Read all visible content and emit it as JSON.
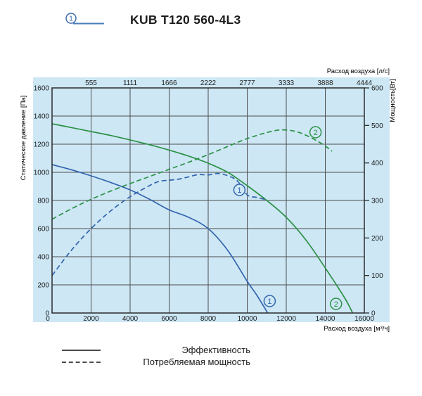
{
  "header": {
    "marker_number": "1",
    "title": "KUB T120 560-4L3"
  },
  "colors": {
    "panel_bg": "#cde7f5",
    "grid": "#4d4d4d",
    "spine": "#2b2b2b",
    "blue_curve": "#3465ad",
    "green_curve": "#2c9145",
    "legend_line": "#4a4a4a",
    "text": "#1c1c1c"
  },
  "chart_data": {
    "type": "line",
    "grid": true,
    "x_axis_bottom": {
      "label": "Расход воздуха [м³/ч]",
      "range": [
        0,
        16000
      ],
      "ticks": [
        {
          "label": "0",
          "at": 0
        },
        {
          "label": "2000",
          "at": 2000
        },
        {
          "label": "4000",
          "at": 4000
        },
        {
          "label": "6000",
          "at": 6000
        },
        {
          "label": "8000",
          "at": 8000
        },
        {
          "label": "10000",
          "at": 10000
        },
        {
          "label": "12000",
          "at": 12000
        },
        {
          "label": "14000",
          "at": 14000
        },
        {
          "label": "16000",
          "at": 16000
        }
      ]
    },
    "x_axis_top": {
      "label": "Расход воздуха [л/с]",
      "ticks": [
        {
          "label": "555",
          "at": 2000
        },
        {
          "label": "1111",
          "at": 4000
        },
        {
          "label": "1666",
          "at": 6000
        },
        {
          "label": "2222",
          "at": 8000
        },
        {
          "label": "2777",
          "at": 10000
        },
        {
          "label": "3333",
          "at": 12000
        },
        {
          "label": "3888",
          "at": 14000
        },
        {
          "label": "4444",
          "at": 16000
        }
      ]
    },
    "y_axis_left": {
      "label": "Статическое давление [Па]",
      "range": [
        0,
        1600
      ],
      "ticks": [
        {
          "label": "0",
          "at": 0
        },
        {
          "label": "200",
          "at": 200
        },
        {
          "label": "400",
          "at": 400
        },
        {
          "label": "600",
          "at": 600
        },
        {
          "label": "800",
          "at": 800
        },
        {
          "label": "1000",
          "at": 1000
        },
        {
          "label": "1200",
          "at": 1200
        },
        {
          "label": "1400",
          "at": 1400
        },
        {
          "label": "1600",
          "at": 1600
        }
      ]
    },
    "y_axis_right": {
      "label": "Мощность[Вт]",
      "range": [
        0,
        600
      ],
      "ticks": [
        {
          "label": "0",
          "at": 0
        },
        {
          "label": "100",
          "at": 100
        },
        {
          "label": "200",
          "at": 200
        },
        {
          "label": "300",
          "at": 300
        },
        {
          "label": "400",
          "at": 400
        },
        {
          "label": "500",
          "at": 500
        },
        {
          "label": "600",
          "at": 600
        }
      ]
    },
    "series": [
      {
        "name": "Эффективность — кривая 1 (статическое давление)",
        "curve_id": "1",
        "axis": "left",
        "style": "solid",
        "color": "#3465ad",
        "points": [
          [
            0,
            1055
          ],
          [
            1000,
            1018
          ],
          [
            2000,
            975
          ],
          [
            3000,
            928
          ],
          [
            4000,
            875
          ],
          [
            5000,
            808
          ],
          [
            6000,
            733
          ],
          [
            7000,
            680
          ],
          [
            8000,
            600
          ],
          [
            9000,
            445
          ],
          [
            10000,
            225
          ],
          [
            10500,
            125
          ],
          [
            11050,
            0
          ]
        ]
      },
      {
        "name": "Эффективность — кривая 2 (статическое давление)",
        "curve_id": "2",
        "axis": "left",
        "style": "solid",
        "color": "#2c9145",
        "points": [
          [
            0,
            1345
          ],
          [
            1000,
            1318
          ],
          [
            2000,
            1290
          ],
          [
            3000,
            1262
          ],
          [
            4000,
            1230
          ],
          [
            5000,
            1196
          ],
          [
            6000,
            1158
          ],
          [
            7000,
            1115
          ],
          [
            8000,
            1065
          ],
          [
            9000,
            1000
          ],
          [
            10000,
            905
          ],
          [
            11000,
            800
          ],
          [
            12000,
            680
          ],
          [
            13000,
            520
          ],
          [
            14000,
            320
          ],
          [
            15000,
            105
          ],
          [
            15400,
            0
          ]
        ]
      },
      {
        "name": "Потребляемая мощность — кривая 1",
        "curve_id": "1",
        "axis": "right",
        "style": "dashed",
        "color": "#3465ad",
        "points": [
          [
            0,
            100
          ],
          [
            1000,
            168
          ],
          [
            2000,
            225
          ],
          [
            3000,
            272
          ],
          [
            4000,
            310
          ],
          [
            5000,
            340
          ],
          [
            5500,
            351
          ],
          [
            6000,
            354
          ],
          [
            6500,
            357
          ],
          [
            7000,
            363
          ],
          [
            7500,
            369
          ],
          [
            8000,
            368
          ],
          [
            8500,
            372
          ],
          [
            9000,
            366
          ],
          [
            9500,
            352
          ],
          [
            10000,
            315
          ],
          [
            10500,
            308
          ],
          [
            10900,
            303
          ]
        ]
      },
      {
        "name": "Потребляемая мощность — кривая 2",
        "curve_id": "2",
        "axis": "right",
        "style": "dashed",
        "color": "#2c9145",
        "points": [
          [
            0,
            250
          ],
          [
            1000,
            278
          ],
          [
            2000,
            303
          ],
          [
            3000,
            325
          ],
          [
            4000,
            345
          ],
          [
            5000,
            364
          ],
          [
            6000,
            383
          ],
          [
            7000,
            402
          ],
          [
            8000,
            422
          ],
          [
            9000,
            444
          ],
          [
            10000,
            465
          ],
          [
            11000,
            481
          ],
          [
            11700,
            488
          ],
          [
            12400,
            485
          ],
          [
            13000,
            474
          ],
          [
            13600,
            458
          ],
          [
            14000,
            445
          ],
          [
            14350,
            431
          ]
        ]
      }
    ],
    "annotations": [
      {
        "label": "1",
        "x": 9600,
        "y_left": 875,
        "color": "#3465ad"
      },
      {
        "label": "1",
        "x": 11150,
        "y_left": 85,
        "color": "#3465ad"
      },
      {
        "label": "2",
        "x": 13500,
        "y_left": 1285,
        "color": "#2c9145"
      },
      {
        "label": "2",
        "x": 14550,
        "y_left": 65,
        "color": "#2c9145"
      }
    ],
    "legend_position": "bottom"
  },
  "legend": {
    "items": [
      {
        "style": "solid",
        "label": "Эффективность"
      },
      {
        "style": "dashed",
        "label": "Потребляемая мощность"
      }
    ]
  }
}
